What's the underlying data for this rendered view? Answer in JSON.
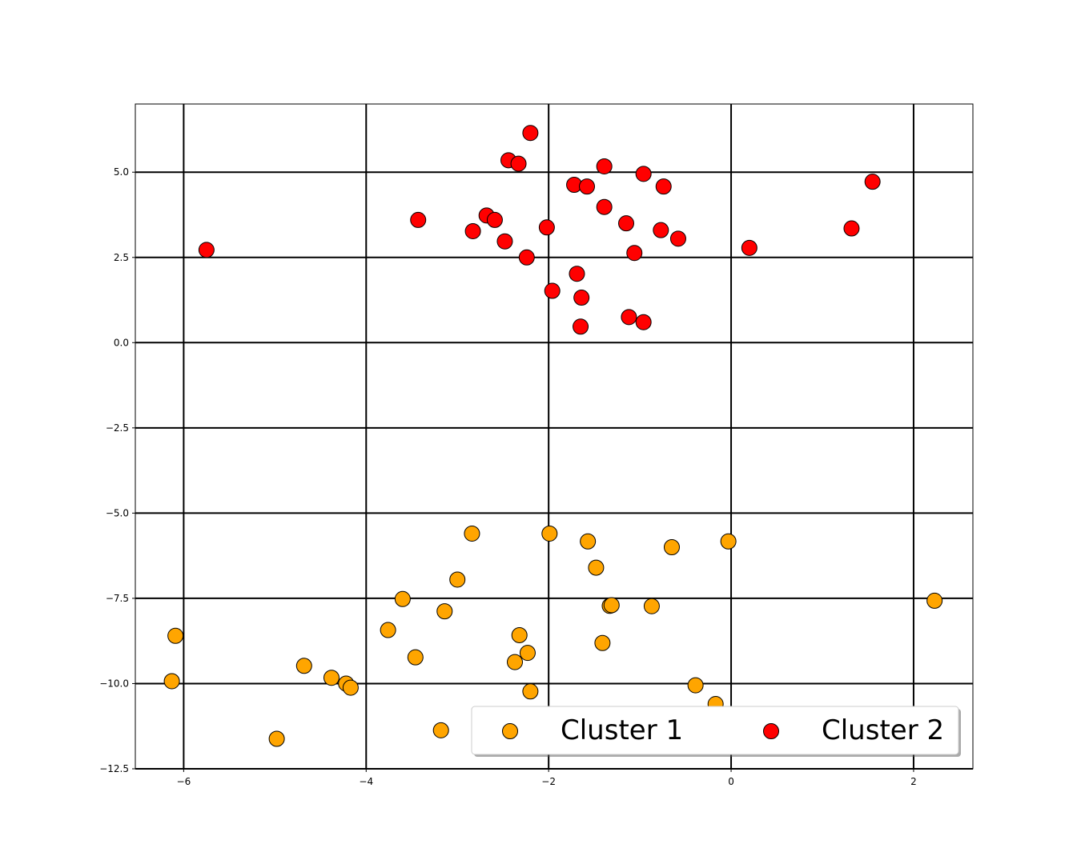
{
  "chart_data": {
    "type": "scatter",
    "title": "",
    "xlabel": "",
    "ylabel": "",
    "xlim": [
      -6.53,
      2.65
    ],
    "ylim": [
      -12.5,
      7.0
    ],
    "xticks": [
      -6,
      -4,
      -2,
      0,
      2
    ],
    "xtick_labels": [
      "−6",
      "−4",
      "−2",
      "0",
      "2"
    ],
    "yticks": [
      -12.5,
      -10.0,
      -7.5,
      -5.0,
      -2.5,
      0.0,
      2.5,
      5.0
    ],
    "ytick_labels": [
      "−12.5",
      "−10.0",
      "−7.5",
      "−5.0",
      "−2.5",
      "0.0",
      "2.5",
      "5.0"
    ],
    "grid": true,
    "legend_position": "lower-right",
    "series": [
      {
        "name": "Cluster 1",
        "color": "#ffa500",
        "points": [
          [
            -6.09,
            -8.6
          ],
          [
            -6.13,
            -9.93
          ],
          [
            -4.98,
            -11.62
          ],
          [
            -4.68,
            -9.48
          ],
          [
            -4.38,
            -9.83
          ],
          [
            -4.22,
            -10.0
          ],
          [
            -4.17,
            -10.12
          ],
          [
            -3.76,
            -8.43
          ],
          [
            -3.6,
            -7.52
          ],
          [
            -3.46,
            -9.23
          ],
          [
            -3.18,
            -11.37
          ],
          [
            -3.14,
            -7.88
          ],
          [
            -3.0,
            -6.95
          ],
          [
            -2.84,
            -5.6
          ],
          [
            -2.4,
            -11.4
          ],
          [
            -2.37,
            -9.37
          ],
          [
            -2.32,
            -8.58
          ],
          [
            -2.23,
            -9.1
          ],
          [
            -2.2,
            -10.23
          ],
          [
            -1.99,
            -5.6
          ],
          [
            -1.57,
            -5.83
          ],
          [
            -1.48,
            -6.6
          ],
          [
            -1.41,
            -8.81
          ],
          [
            -1.33,
            -7.72
          ],
          [
            -1.31,
            -7.7
          ],
          [
            -0.87,
            -7.73
          ],
          [
            -0.65,
            -6.0
          ],
          [
            -0.39,
            -10.05
          ],
          [
            -0.17,
            -10.6
          ],
          [
            -0.03,
            -5.83
          ],
          [
            2.23,
            -7.57
          ]
        ]
      },
      {
        "name": "Cluster 2",
        "color": "#ff0000",
        "points": [
          [
            -5.75,
            2.72
          ],
          [
            -3.43,
            3.6
          ],
          [
            -2.83,
            3.27
          ],
          [
            -2.68,
            3.73
          ],
          [
            -2.59,
            3.6
          ],
          [
            -2.48,
            2.97
          ],
          [
            -2.44,
            5.35
          ],
          [
            -2.33,
            5.25
          ],
          [
            -2.24,
            2.5
          ],
          [
            -2.2,
            6.15
          ],
          [
            -2.02,
            3.38
          ],
          [
            -1.96,
            1.52
          ],
          [
            -1.72,
            4.63
          ],
          [
            -1.69,
            2.02
          ],
          [
            -1.64,
            1.32
          ],
          [
            -1.65,
            0.47
          ],
          [
            -1.58,
            4.58
          ],
          [
            -1.39,
            5.17
          ],
          [
            -1.39,
            3.98
          ],
          [
            -1.15,
            3.5
          ],
          [
            -1.12,
            0.75
          ],
          [
            -1.06,
            2.63
          ],
          [
            -0.96,
            0.6
          ],
          [
            -0.96,
            4.95
          ],
          [
            -0.77,
            3.3
          ],
          [
            -0.74,
            4.58
          ],
          [
            -0.58,
            3.05
          ],
          [
            0.2,
            2.78
          ],
          [
            1.32,
            3.35
          ],
          [
            1.55,
            4.72
          ]
        ]
      }
    ]
  }
}
